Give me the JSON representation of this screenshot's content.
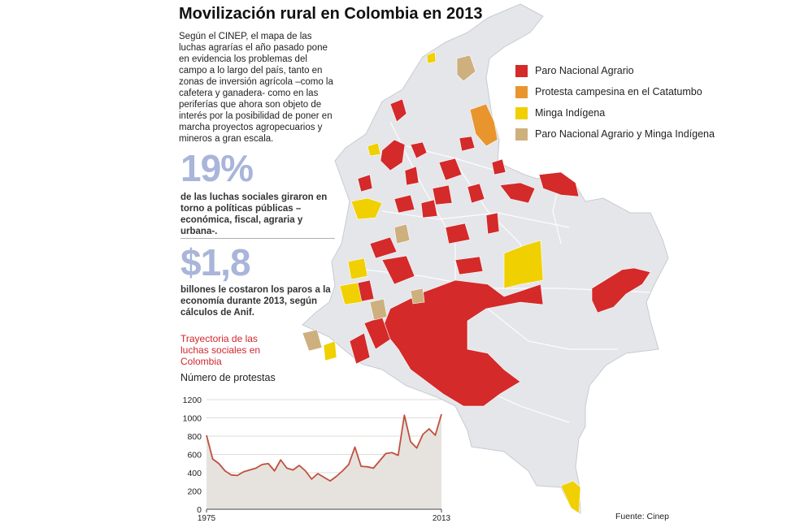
{
  "header": {
    "title": "Movilización rural en Colombia en 2013",
    "intro": "Según el CINEP, el mapa de las luchas agrarías el año pasado pone en evidencia los problemas del campo a lo largo del país, tanto en zonas de inversión agrícola –como la cafetera y ganadera- como en las periferías que ahora son objeto de interés por la posibilidad de poner en marcha proyectos agropecuarios y mineros a gran escala."
  },
  "stats": {
    "stat1_value": "19%",
    "stat1_text": "de las luchas sociales giraron en torno a políticas públicas –económica, fiscal, agraria y urbana-.",
    "stat2_value": "$1,8",
    "stat2_text": "billones le costaron los paros a la economía durante 2013, según cálculos de Anif."
  },
  "legend": {
    "items": [
      {
        "label": "Paro Nacional Agrario",
        "color": "#d42a2a"
      },
      {
        "label": "Protesta campesina en el Catatumbo",
        "color": "#e8952e"
      },
      {
        "label": "Minga Indígena",
        "color": "#f0d000"
      },
      {
        "label": "Paro Nacional Agrario y Minga Indígena",
        "color": "#cdb07e"
      }
    ]
  },
  "source": "Fuente: Cinep",
  "chart_data": {
    "type": "area",
    "title": "Trayectoria de las luchas sociales en Colombia",
    "ylabel": "Número de protestas",
    "x": [
      1975,
      1976,
      1977,
      1978,
      1979,
      1980,
      1981,
      1982,
      1983,
      1984,
      1985,
      1986,
      1987,
      1988,
      1989,
      1990,
      1991,
      1992,
      1993,
      1994,
      1995,
      1996,
      1997,
      1998,
      1999,
      2000,
      2001,
      2002,
      2003,
      2004,
      2005,
      2006,
      2007,
      2008,
      2009,
      2010,
      2011,
      2012,
      2013
    ],
    "values": [
      810,
      550,
      500,
      420,
      375,
      370,
      410,
      430,
      450,
      490,
      500,
      420,
      540,
      450,
      430,
      480,
      420,
      330,
      390,
      350,
      310,
      360,
      420,
      490,
      680,
      470,
      465,
      450,
      530,
      610,
      620,
      590,
      1030,
      740,
      670,
      820,
      880,
      810,
      1040
    ],
    "ylim": [
      0,
      1200
    ],
    "yticks": [
      0,
      200,
      400,
      600,
      800,
      1000,
      1200
    ],
    "xticks": [
      1975,
      2013
    ],
    "colors": {
      "line": "#c0503d",
      "fill": "#e6e3df",
      "grid": "#d3d0cc"
    }
  }
}
